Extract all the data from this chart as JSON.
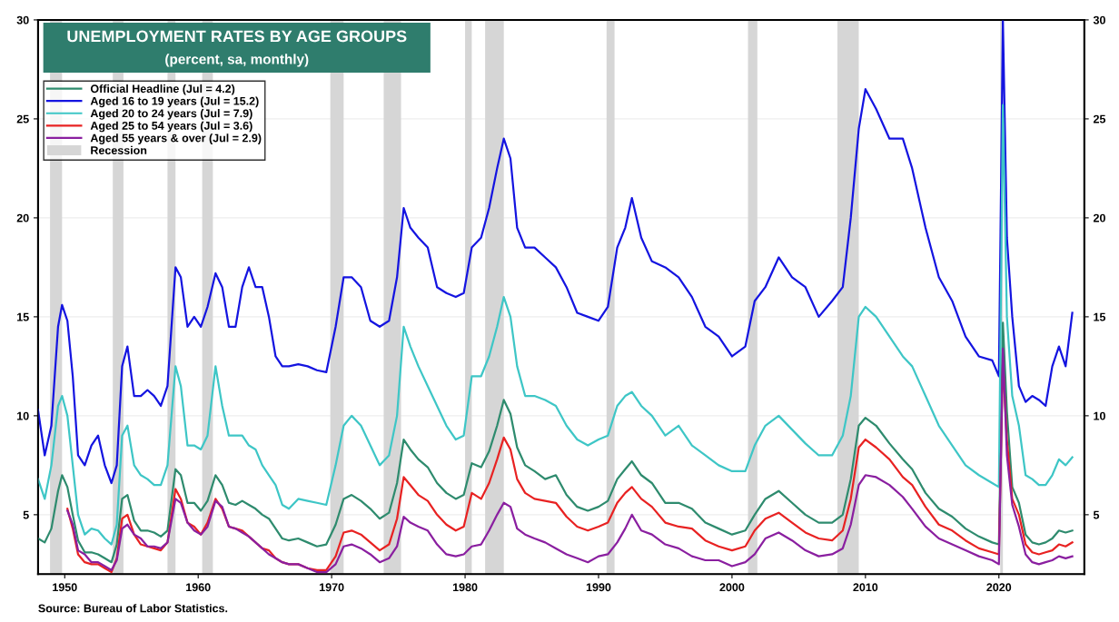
{
  "chart_data": {
    "type": "line",
    "title": "UNEMPLOYMENT RATES BY AGE GROUPS",
    "subtitle": "(percent, sa, monthly)",
    "annotations": [
      "Source: Bureau of Labor Statistics."
    ],
    "x": [
      1948.0,
      1948.5,
      1949.0,
      1949.5,
      1949.8,
      1950.2,
      1950.6,
      1951.0,
      1951.5,
      1952.0,
      1952.5,
      1953.0,
      1953.5,
      1953.9,
      1954.3,
      1954.7,
      1955.2,
      1955.7,
      1956.2,
      1956.7,
      1957.2,
      1957.7,
      1958.3,
      1958.7,
      1959.2,
      1959.7,
      1960.2,
      1960.7,
      1961.3,
      1961.8,
      1962.3,
      1962.8,
      1963.3,
      1963.8,
      1964.3,
      1964.8,
      1965.3,
      1965.8,
      1966.3,
      1966.8,
      1967.5,
      1968.2,
      1968.9,
      1969.6,
      1970.3,
      1970.9,
      1971.5,
      1972.2,
      1972.9,
      1973.6,
      1974.3,
      1974.9,
      1975.4,
      1975.9,
      1976.5,
      1977.2,
      1977.9,
      1978.6,
      1979.3,
      1979.9,
      1980.5,
      1981.2,
      1981.8,
      1982.4,
      1982.9,
      1983.4,
      1983.9,
      1984.5,
      1985.2,
      1986.0,
      1986.8,
      1987.6,
      1988.4,
      1989.2,
      1990.0,
      1990.7,
      1991.4,
      1992.0,
      1992.5,
      1993.2,
      1994.0,
      1995.0,
      1996.0,
      1997.0,
      1998.0,
      1999.0,
      2000.0,
      2001.0,
      2001.7,
      2002.5,
      2003.5,
      2004.5,
      2005.5,
      2006.5,
      2007.5,
      2008.3,
      2008.9,
      2009.5,
      2010.0,
      2010.8,
      2011.8,
      2012.8,
      2013.5,
      2014.5,
      2015.5,
      2016.5,
      2017.5,
      2018.5,
      2019.5,
      2020.0,
      2020.3,
      2020.6,
      2021.0,
      2021.5,
      2022.0,
      2022.5,
      2023.0,
      2023.5,
      2024.0,
      2024.5,
      2025.0,
      2025.5
    ],
    "series": [
      {
        "name": "Official Headline (Jul = 4.2)",
        "color": "#2e8b6e",
        "values": [
          3.8,
          3.6,
          4.3,
          6.2,
          7.0,
          6.4,
          5.0,
          3.7,
          3.1,
          3.1,
          3.0,
          2.8,
          2.6,
          3.5,
          5.8,
          6.0,
          4.7,
          4.2,
          4.2,
          4.1,
          3.9,
          4.2,
          7.3,
          7.0,
          5.6,
          5.6,
          5.2,
          5.7,
          7.0,
          6.5,
          5.6,
          5.5,
          5.7,
          5.5,
          5.3,
          5.0,
          4.8,
          4.3,
          3.8,
          3.7,
          3.8,
          3.6,
          3.4,
          3.5,
          4.5,
          5.8,
          6.0,
          5.7,
          5.3,
          4.8,
          5.1,
          6.6,
          8.8,
          8.3,
          7.8,
          7.4,
          6.6,
          6.1,
          5.8,
          6.0,
          7.6,
          7.4,
          8.2,
          9.5,
          10.8,
          10.1,
          8.4,
          7.5,
          7.2,
          6.8,
          7.0,
          6.0,
          5.4,
          5.2,
          5.4,
          5.7,
          6.8,
          7.3,
          7.7,
          7.0,
          6.6,
          5.6,
          5.6,
          5.3,
          4.6,
          4.3,
          4.0,
          4.2,
          5.0,
          5.8,
          6.2,
          5.6,
          5.0,
          4.6,
          4.6,
          5.0,
          6.8,
          9.5,
          9.9,
          9.5,
          8.6,
          7.8,
          7.3,
          6.1,
          5.3,
          4.9,
          4.3,
          3.9,
          3.6,
          3.5,
          14.7,
          10.2,
          6.4,
          5.6,
          4.0,
          3.6,
          3.5,
          3.6,
          3.8,
          4.2,
          4.1,
          4.2
        ]
      },
      {
        "name": "Aged 16 to 19 years (Jul = 15.2)",
        "color": "#1414e0",
        "values": [
          10.3,
          8.0,
          9.5,
          14.5,
          15.6,
          14.8,
          12.0,
          8.0,
          7.5,
          8.5,
          9.0,
          7.5,
          6.6,
          7.5,
          12.5,
          13.5,
          11.0,
          11.0,
          11.3,
          11.0,
          10.5,
          11.5,
          17.5,
          17.0,
          14.5,
          15.0,
          14.5,
          15.5,
          17.2,
          16.5,
          14.5,
          14.5,
          16.5,
          17.5,
          16.5,
          16.5,
          15.0,
          13.0,
          12.5,
          12.5,
          12.6,
          12.5,
          12.3,
          12.2,
          14.5,
          17.0,
          17.0,
          16.5,
          14.8,
          14.5,
          14.8,
          17.0,
          20.5,
          19.5,
          19.0,
          18.5,
          16.5,
          16.2,
          16.0,
          16.2,
          18.5,
          19.0,
          20.5,
          22.5,
          24.0,
          23.0,
          19.5,
          18.5,
          18.5,
          18.0,
          17.5,
          16.5,
          15.2,
          15.0,
          14.8,
          15.5,
          18.5,
          19.5,
          21.0,
          19.0,
          17.8,
          17.5,
          17.0,
          16.0,
          14.5,
          14.0,
          13.0,
          13.5,
          15.8,
          16.5,
          18.0,
          17.0,
          16.5,
          15.0,
          15.8,
          16.5,
          20.0,
          24.5,
          26.5,
          25.5,
          24.0,
          24.0,
          22.5,
          19.5,
          17.0,
          15.8,
          14.0,
          13.0,
          12.8,
          12.0,
          30.0,
          19.0,
          15.0,
          11.5,
          10.7,
          11.0,
          10.8,
          10.5,
          12.5,
          13.5,
          12.5,
          15.2
        ]
      },
      {
        "name": "Aged 20 to 24 years (Jul = 7.9)",
        "color": "#3ec6c6",
        "values": [
          6.8,
          5.8,
          7.5,
          10.5,
          11.0,
          10.0,
          7.5,
          5.0,
          4.0,
          4.3,
          4.2,
          3.8,
          3.5,
          4.5,
          9.0,
          9.5,
          7.5,
          7.0,
          6.8,
          6.5,
          6.5,
          7.5,
          12.5,
          11.5,
          8.5,
          8.5,
          8.3,
          9.0,
          12.5,
          10.5,
          9.0,
          9.0,
          9.0,
          8.5,
          8.3,
          7.5,
          7.0,
          6.5,
          5.5,
          5.3,
          5.8,
          5.7,
          5.6,
          5.5,
          7.5,
          9.5,
          10.0,
          9.5,
          8.5,
          7.5,
          8.0,
          10.0,
          14.5,
          13.5,
          12.5,
          11.5,
          10.5,
          9.5,
          8.8,
          9.0,
          12.0,
          12.0,
          13.0,
          14.5,
          16.0,
          15.0,
          12.5,
          11.0,
          11.0,
          10.8,
          10.5,
          9.5,
          8.8,
          8.5,
          8.8,
          9.0,
          10.5,
          11.0,
          11.2,
          10.5,
          10.0,
          9.0,
          9.5,
          8.5,
          8.0,
          7.5,
          7.2,
          7.2,
          8.5,
          9.5,
          10.0,
          9.3,
          8.6,
          8.0,
          8.0,
          9.0,
          11.0,
          15.0,
          15.5,
          15.0,
          14.0,
          13.0,
          12.5,
          11.0,
          9.5,
          8.5,
          7.5,
          7.0,
          6.6,
          6.4,
          25.7,
          15.0,
          11.0,
          9.5,
          7.0,
          6.8,
          6.5,
          6.5,
          7.0,
          7.8,
          7.5,
          7.9
        ]
      },
      {
        "name": "Aged 25 to 54 years (Jul = 3.6)",
        "color": "#e82222",
        "values": [
          null,
          null,
          null,
          null,
          null,
          5.3,
          4.3,
          3.0,
          2.6,
          2.5,
          2.5,
          2.3,
          2.1,
          2.8,
          4.8,
          5.0,
          4.0,
          3.5,
          3.4,
          3.3,
          3.2,
          3.6,
          6.3,
          5.8,
          4.6,
          4.4,
          4.0,
          4.6,
          5.8,
          5.3,
          4.4,
          4.3,
          4.2,
          3.9,
          3.6,
          3.3,
          3.2,
          2.8,
          2.6,
          2.5,
          2.5,
          2.3,
          2.2,
          2.2,
          2.9,
          4.1,
          4.2,
          4.0,
          3.6,
          3.2,
          3.5,
          4.8,
          6.9,
          6.5,
          6.0,
          5.7,
          5.0,
          4.5,
          4.2,
          4.4,
          6.1,
          5.8,
          6.6,
          7.8,
          8.9,
          8.3,
          6.8,
          6.1,
          5.8,
          5.7,
          5.6,
          4.9,
          4.4,
          4.2,
          4.4,
          4.6,
          5.6,
          6.1,
          6.4,
          5.8,
          5.4,
          4.6,
          4.4,
          4.3,
          3.7,
          3.4,
          3.2,
          3.4,
          4.2,
          4.8,
          5.1,
          4.6,
          4.1,
          3.8,
          3.7,
          4.2,
          5.8,
          8.4,
          8.8,
          8.4,
          7.8,
          6.9,
          6.5,
          5.4,
          4.5,
          4.2,
          3.7,
          3.3,
          3.1,
          3.0,
          12.8,
          8.8,
          5.8,
          5.0,
          3.5,
          3.1,
          3.0,
          3.1,
          3.2,
          3.5,
          3.4,
          3.6
        ]
      },
      {
        "name": "Aged 55 years & over (Jul = 2.9)",
        "color": "#8a1fa0",
        "values": [
          null,
          null,
          null,
          null,
          null,
          5.2,
          4.5,
          3.2,
          3.0,
          2.6,
          2.6,
          2.4,
          2.2,
          2.7,
          4.3,
          4.5,
          4.0,
          3.8,
          3.4,
          3.4,
          3.3,
          3.6,
          5.8,
          5.6,
          4.6,
          4.2,
          4.0,
          4.4,
          5.7,
          5.4,
          4.4,
          4.3,
          4.1,
          3.9,
          3.6,
          3.3,
          3.0,
          2.8,
          2.6,
          2.5,
          2.5,
          2.3,
          2.1,
          2.1,
          2.5,
          3.4,
          3.5,
          3.3,
          3.0,
          2.6,
          2.8,
          3.4,
          4.9,
          4.6,
          4.4,
          4.2,
          3.5,
          3.0,
          2.9,
          3.0,
          3.4,
          3.5,
          4.2,
          5.0,
          5.6,
          5.4,
          4.3,
          4.0,
          3.8,
          3.6,
          3.3,
          3.0,
          2.8,
          2.6,
          2.9,
          3.0,
          3.6,
          4.3,
          5.0,
          4.2,
          4.0,
          3.5,
          3.3,
          2.9,
          2.7,
          2.7,
          2.4,
          2.6,
          3.0,
          3.8,
          4.1,
          3.7,
          3.2,
          2.9,
          3.0,
          3.3,
          4.5,
          6.5,
          7.0,
          6.9,
          6.5,
          5.9,
          5.3,
          4.4,
          3.8,
          3.5,
          3.2,
          2.9,
          2.7,
          2.5,
          13.4,
          8.0,
          5.5,
          4.4,
          3.0,
          2.6,
          2.5,
          2.6,
          2.7,
          2.9,
          2.8,
          2.9
        ]
      }
    ],
    "bands": [
      {
        "axis": "x",
        "from": 1948.9,
        "to": 1949.8,
        "label": "Recession",
        "color": "#d6d6d6"
      },
      {
        "axis": "x",
        "from": 1953.6,
        "to": 1954.4,
        "color": "#d6d6d6"
      },
      {
        "axis": "x",
        "from": 1957.7,
        "to": 1958.3,
        "color": "#d6d6d6"
      },
      {
        "axis": "x",
        "from": 1960.3,
        "to": 1961.1,
        "color": "#d6d6d6"
      },
      {
        "axis": "x",
        "from": 1969.9,
        "to": 1970.9,
        "color": "#d6d6d6"
      },
      {
        "axis": "x",
        "from": 1973.9,
        "to": 1975.2,
        "color": "#d6d6d6"
      },
      {
        "axis": "x",
        "from": 1980.0,
        "to": 1980.5,
        "color": "#d6d6d6"
      },
      {
        "axis": "x",
        "from": 1981.5,
        "to": 1982.9,
        "color": "#d6d6d6"
      },
      {
        "axis": "x",
        "from": 1990.6,
        "to": 1991.2,
        "color": "#d6d6d6"
      },
      {
        "axis": "x",
        "from": 2001.2,
        "to": 2001.9,
        "color": "#d6d6d6"
      },
      {
        "axis": "x",
        "from": 2007.9,
        "to": 2009.5,
        "color": "#d6d6d6"
      },
      {
        "axis": "x",
        "from": 2020.1,
        "to": 2020.3,
        "color": "#d6d6d6"
      }
    ],
    "xlim": [
      1948,
      2026.4
    ],
    "xticks": [
      1950,
      1960,
      1970,
      1980,
      1990,
      2000,
      2010,
      2020
    ],
    "ylim": [
      2,
      30
    ],
    "yticks": [
      5,
      10,
      15,
      20,
      25,
      30
    ],
    "y2lim": [
      2,
      30
    ],
    "y2ticks": [
      5,
      10,
      15,
      20,
      25,
      30
    ],
    "grid": "y",
    "legend": "top left",
    "line_style": "solid",
    "marker": "none"
  }
}
